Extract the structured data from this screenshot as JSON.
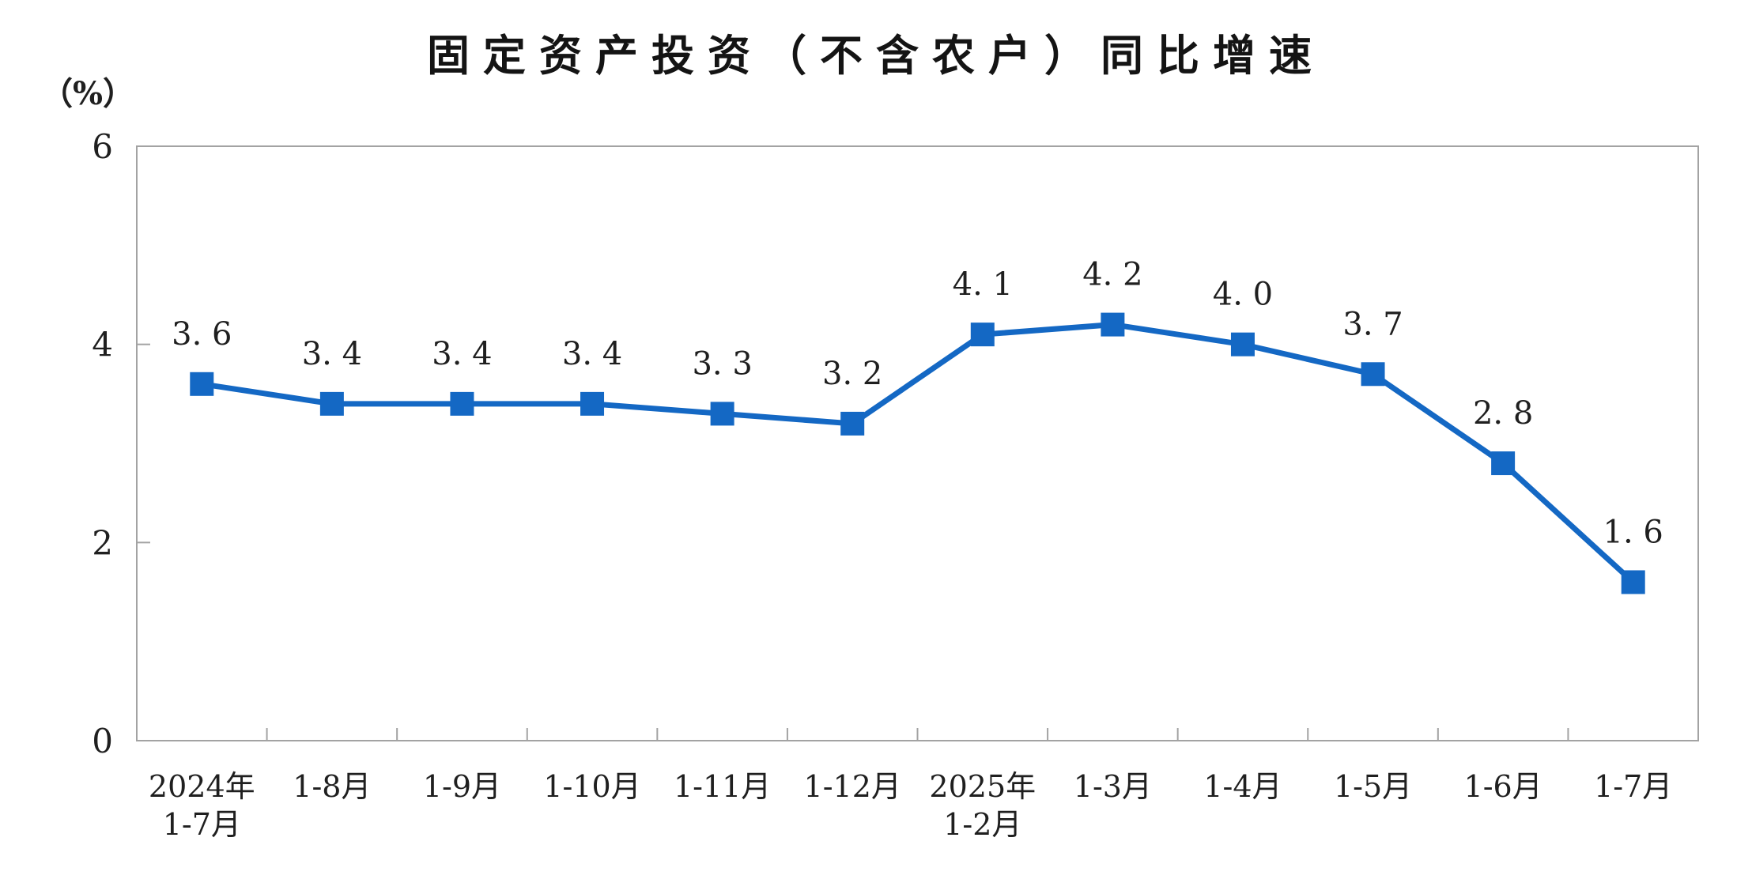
{
  "page": {
    "background_color": "#ffffff"
  },
  "chart_data": {
    "type": "line",
    "title": "固定资产投资（不含农户）同比增速",
    "unit_label": "（%）",
    "xlabel": "",
    "ylabel": "（%）",
    "categories": [
      "2024年\n1-7月",
      "1-8月",
      "1-9月",
      "1-10月",
      "1-11月",
      "1-12月",
      "2025年\n1-2月",
      "1-3月",
      "1-4月",
      "1-5月",
      "1-6月",
      "1-7月"
    ],
    "values": [
      3.6,
      3.4,
      3.4,
      3.4,
      3.3,
      3.2,
      4.1,
      4.2,
      4.0,
      3.7,
      2.8,
      1.6
    ],
    "point_labels": [
      "3. 6",
      "3. 4",
      "3. 4",
      "3. 4",
      "3. 3",
      "3. 2",
      "4. 1",
      "4. 2",
      "4. 0",
      "3. 7",
      "2. 8",
      "1. 6"
    ],
    "ylim": [
      0,
      6
    ],
    "yticks": [
      0,
      2,
      4,
      6
    ],
    "grid": "off",
    "legend": "none",
    "marker_shape": "square",
    "line_color": "#1468C4",
    "axis_color": "#a3a3a3",
    "text_color": "#1f1f1f",
    "title_color": "#141414"
  }
}
